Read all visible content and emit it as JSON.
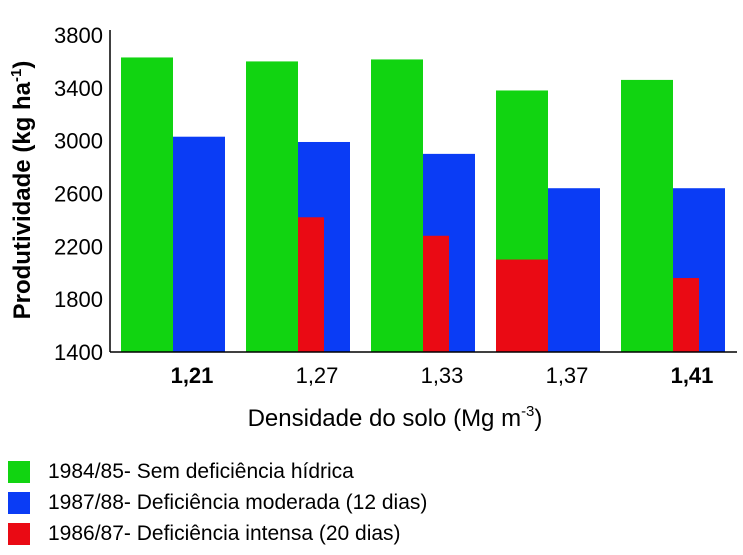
{
  "chart_data": {
    "type": "bar",
    "categories": [
      "1,21",
      "1,27",
      "1,33",
      "1,37",
      "1,41"
    ],
    "category_bold": [
      true,
      false,
      false,
      false,
      true
    ],
    "series": [
      {
        "name": "1984/85- Sem deficiência hídrica",
        "color": "#11d411",
        "values": [
          3630,
          3600,
          3615,
          3380,
          3460
        ]
      },
      {
        "name": "1987/88- Deficiência moderada (12 dias)",
        "color": "#0a3cf5",
        "values": [
          3030,
          2990,
          2900,
          2640,
          2640
        ]
      },
      {
        "name": "1986/87- Deficiência intensa (20 dias)",
        "color": "#ea0a14",
        "values": [
          null,
          2420,
          2280,
          2100,
          1960
        ]
      }
    ],
    "ylim": [
      1400,
      3800
    ],
    "yticks": [
      "1400",
      "1800",
      "2200",
      "2600",
      "3000",
      "3400",
      "3800"
    ],
    "ylabel": {
      "main": "Produtividade (kg ha",
      "sup": "-1",
      "close": ")"
    },
    "xlabel": {
      "main": "Densidade do solo (Mg m",
      "sup": "-3",
      "close": ")"
    },
    "legend_position": "bottom-left"
  }
}
